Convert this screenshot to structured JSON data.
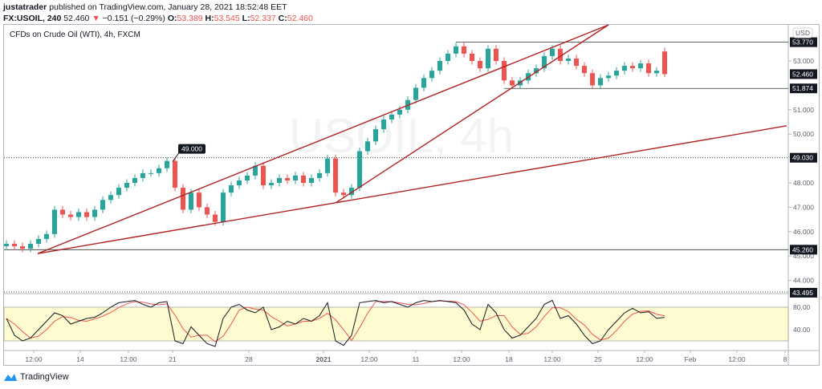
{
  "header": {
    "author": "justatrader",
    "published": "published on TradingView.com, January 28, 2021 18:52:48 EET",
    "symbol": "FX:USOIL, 240",
    "last": "52.460",
    "change": "−0.151 (−0.29%)",
    "o_label": "O:",
    "o": "53.389",
    "h_label": "H:",
    "h": "53.545",
    "l_label": "L:",
    "l": "52.337",
    "c_label": "C:",
    "c": "52.460",
    "down_arrow": "▼"
  },
  "chart_title": "CFDs on Crude Oil (WTI), 4h, FXCM",
  "currency": "USD",
  "watermark": "USOIL, 4h",
  "colors": {
    "up": "#26a69a",
    "down": "#ef5350",
    "trendline": "#b22222",
    "band": "#fffbd0",
    "k": "#131722",
    "d": "#ef5350"
  },
  "chart_data": {
    "type": "candlestick",
    "price_ticks": [
      "53.000",
      "51.000",
      "50.000",
      "48.000",
      "47.000",
      "46.000",
      "45.000",
      "44.000"
    ],
    "price_tick_values": [
      53,
      51,
      50,
      48,
      47,
      46,
      45,
      44
    ],
    "price_tags": [
      {
        "text": "53.770",
        "value": 53.77
      },
      {
        "text": "52.460",
        "value": 52.46
      },
      {
        "text": "51.874",
        "value": 51.874
      },
      {
        "text": "49.030",
        "value": 49.03
      },
      {
        "text": "45.260",
        "value": 45.26
      },
      {
        "text": "43.495",
        "value": 43.495
      }
    ],
    "callout": {
      "text": "49.000",
      "value": 49.0
    },
    "closes": [
      45.5,
      45.4,
      45.3,
      45.5,
      45.7,
      45.9,
      46.9,
      46.7,
      46.6,
      46.8,
      46.6,
      46.9,
      47.3,
      47.5,
      47.8,
      48.0,
      48.2,
      48.4,
      48.4,
      48.6,
      48.9,
      47.8,
      46.9,
      47.6,
      47.0,
      46.7,
      46.4,
      47.6,
      47.9,
      48.1,
      48.3,
      48.7,
      47.9,
      48.0,
      48.2,
      48.1,
      48.3,
      48.0,
      48.2,
      48.4,
      49.0,
      47.6,
      47.5,
      47.8,
      49.3,
      49.7,
      50.2,
      50.6,
      50.8,
      51.0,
      51.4,
      51.9,
      52.3,
      52.6,
      53.0,
      53.3,
      53.6,
      53.3,
      53.0,
      52.7,
      53.5,
      53.0,
      52.2,
      52.0,
      52.2,
      52.5,
      52.7,
      53.2,
      53.5,
      53.0,
      53.1,
      52.8,
      52.5,
      52.0,
      52.3,
      52.4,
      52.6,
      52.8,
      52.7,
      52.9,
      52.5,
      52.6,
      52.46
    ],
    "last_candle": {
      "open": 53.389,
      "high": 53.545,
      "low": 52.337,
      "close": 52.46
    },
    "trendlines": [
      {
        "from_index": 4,
        "from": 45.1,
        "to": 54.48
      },
      {
        "from_index": 4,
        "from": 45.1,
        "to": 50.34
      },
      {
        "from_index": 41,
        "from": 47.18,
        "to": 54.48
      }
    ],
    "horizontal_lines": [
      {
        "value": 53.77,
        "from_index": 56
      },
      {
        "value": 51.874,
        "from_index": 62
      },
      {
        "value": 45.26,
        "from_index": 0
      },
      {
        "value": 49.03,
        "from_index": 0,
        "dotted": true
      }
    ],
    "oscillator": {
      "ticks": [
        "80.00",
        "40.00"
      ],
      "tick_values": [
        80,
        40
      ],
      "band": [
        20,
        80
      ],
      "k": [
        60,
        30,
        20,
        25,
        40,
        55,
        70,
        65,
        50,
        55,
        60,
        62,
        70,
        80,
        88,
        90,
        92,
        85,
        80,
        88,
        90,
        20,
        15,
        45,
        30,
        15,
        10,
        60,
        80,
        85,
        75,
        70,
        80,
        40,
        45,
        55,
        50,
        60,
        55,
        65,
        88,
        20,
        12,
        30,
        88,
        90,
        92,
        88,
        90,
        85,
        80,
        88,
        92,
        90,
        92,
        90,
        88,
        75,
        50,
        40,
        85,
        70,
        40,
        25,
        30,
        45,
        60,
        85,
        92,
        60,
        65,
        50,
        30,
        15,
        20,
        40,
        55,
        70,
        78,
        70,
        72,
        60,
        62
      ]
    },
    "time_ticks": [
      "12:00",
      "14",
      "12:00",
      "21",
      "28",
      "2021",
      "12:00",
      "11",
      "12:00",
      "18",
      "12:00",
      "25",
      "12:00",
      "Feb",
      "12:00",
      "8"
    ]
  },
  "footer": {
    "brand": "TradingView"
  }
}
